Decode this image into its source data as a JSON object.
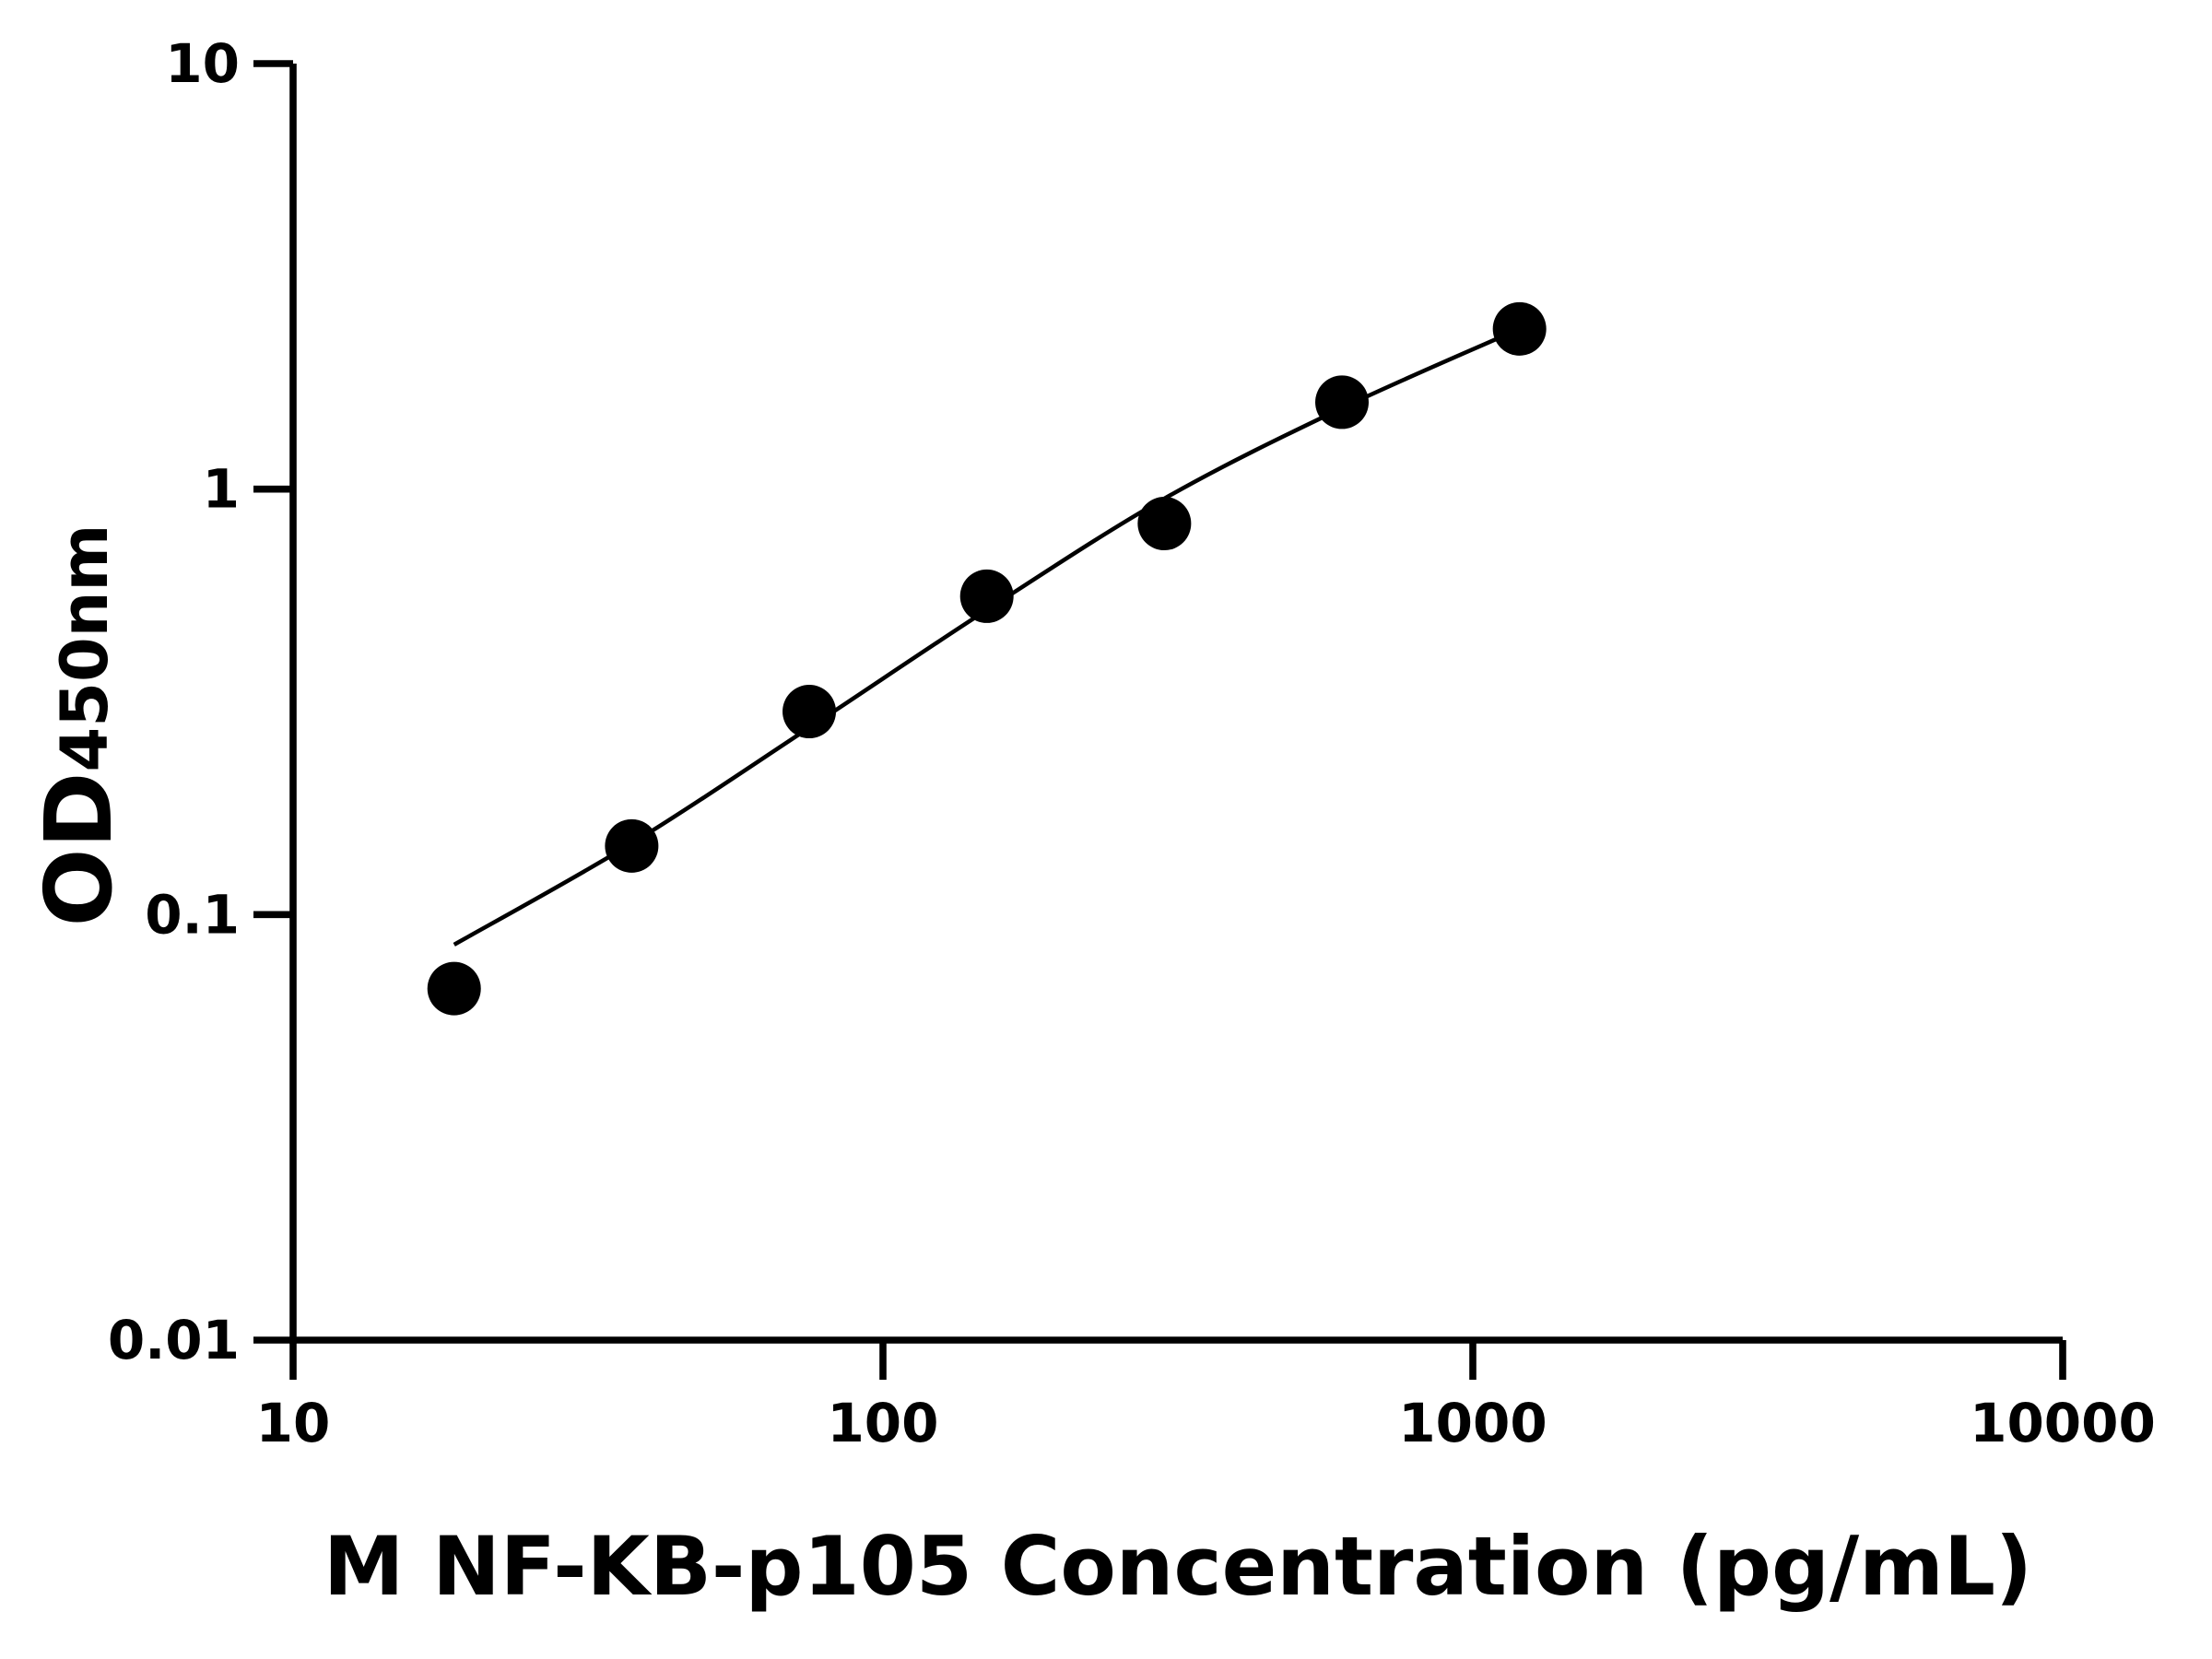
{
  "chart_data": {
    "type": "scatter",
    "xlabel": "M NF-KB-p105 Concentration (pg/mL)",
    "ylabel": "OD",
    "ylabel_sub": "450nm",
    "x": [
      18.75,
      37.5,
      75,
      150,
      300,
      600,
      1200
    ],
    "values": [
      0.067,
      0.145,
      0.3,
      0.56,
      0.83,
      1.6,
      2.38
    ],
    "color": "#000000",
    "fit": {
      "x": [
        18.75,
        37.5,
        75,
        150,
        300,
        600,
        1200
      ],
      "values": [
        0.085,
        0.147,
        0.275,
        0.52,
        0.95,
        1.55,
        2.38
      ]
    },
    "xscale": "log",
    "yscale": "log",
    "xlim": [
      10,
      10000
    ],
    "ylim": [
      0.01,
      10
    ],
    "xticks": [
      10,
      100,
      1000,
      10000
    ],
    "yticks": [
      0.01,
      0.1,
      1,
      10
    ]
  }
}
